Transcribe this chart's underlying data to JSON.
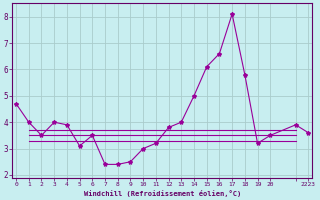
{
  "xlabel": "Windchill (Refroidissement éolien,°C)",
  "bg_color": "#c8eef0",
  "line_color": "#990099",
  "grid_color": "#aacccc",
  "axis_color": "#660066",
  "x_hours": [
    0,
    1,
    2,
    3,
    4,
    5,
    6,
    7,
    8,
    9,
    10,
    11,
    12,
    13,
    14,
    15,
    16,
    17,
    18,
    19,
    20,
    22,
    23
  ],
  "y_main": [
    4.7,
    4.0,
    3.5,
    4.0,
    3.9,
    3.1,
    3.5,
    2.4,
    2.4,
    2.5,
    3.0,
    3.2,
    3.8,
    4.0,
    5.0,
    6.1,
    6.6,
    8.1,
    5.8,
    3.2,
    3.5,
    3.9,
    3.6
  ],
  "flat_lines": [
    3.3,
    3.5,
    3.7
  ],
  "flat_x_start": 1,
  "flat_x_end": 22,
  "ylim": [
    1.9,
    8.5
  ],
  "xlim": [
    -0.3,
    23.3
  ],
  "yticks": [
    2,
    3,
    4,
    5,
    6,
    7,
    8
  ],
  "xticks": [
    0,
    1,
    2,
    3,
    4,
    5,
    6,
    7,
    8,
    9,
    10,
    11,
    12,
    13,
    14,
    15,
    16,
    17,
    18,
    19,
    20,
    22,
    23
  ],
  "xtick_labels": [
    "0",
    "1",
    "2",
    "3",
    "4",
    "5",
    "6",
    "7",
    "8",
    "9",
    "10",
    "11",
    "12",
    "13",
    "14",
    "15",
    "16",
    "17",
    "18",
    "19",
    "20",
    "",
    "2223"
  ],
  "ytick_labels": [
    "2",
    "3",
    "4",
    "5",
    "6",
    "7",
    "8"
  ]
}
